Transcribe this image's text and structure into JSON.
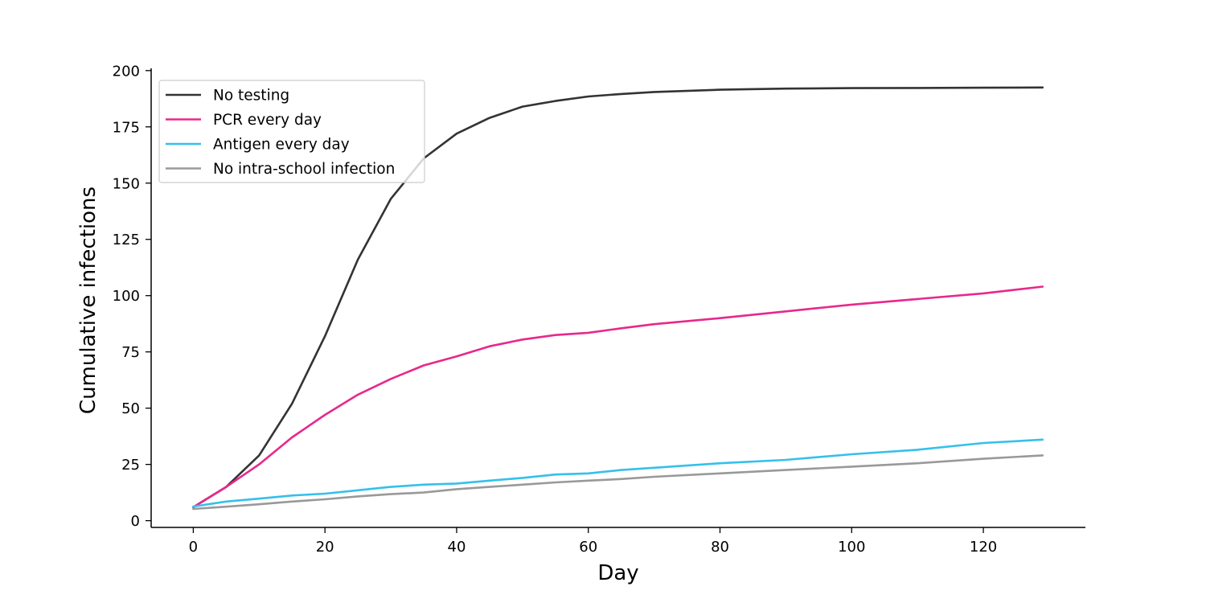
{
  "chart_data": {
    "type": "line",
    "title": "",
    "xlabel": "Day",
    "ylabel": "Cumulative infections",
    "xlim": [
      -6.4,
      135.5
    ],
    "ylim": [
      -3,
      201
    ],
    "xticks": [
      0,
      20,
      40,
      60,
      80,
      100,
      120
    ],
    "yticks": [
      0,
      25,
      50,
      75,
      100,
      125,
      150,
      175,
      200
    ],
    "grid": false,
    "legend": "top-left",
    "x": [
      0,
      5,
      10,
      15,
      20,
      25,
      30,
      35,
      40,
      45,
      50,
      55,
      60,
      65,
      70,
      80,
      90,
      100,
      110,
      120,
      129
    ],
    "series": [
      {
        "name": "No testing",
        "color": "#333333",
        "values": [
          6,
          15,
          29,
          52,
          82,
          116,
          143,
          161,
          172,
          179,
          184,
          186.5,
          188.5,
          189.6,
          190.5,
          191.5,
          192,
          192.2,
          192.3,
          192.4,
          192.5
        ]
      },
      {
        "name": "PCR every day",
        "color": "#e8288c",
        "values": [
          6,
          15,
          25,
          37,
          47,
          56,
          63,
          69,
          73,
          77.5,
          80.5,
          82.5,
          83.5,
          85.5,
          87.3,
          90,
          93,
          96,
          98.5,
          101,
          104
        ]
      },
      {
        "name": "Antigen every day",
        "color": "#35c0ea",
        "values": [
          6.3,
          8.5,
          9.8,
          11.2,
          12,
          13.5,
          15,
          16,
          16.5,
          17.8,
          19,
          20.5,
          21,
          22.5,
          23.5,
          25.5,
          27,
          29.5,
          31.5,
          34.5,
          36
        ]
      },
      {
        "name": "No intra-school infection",
        "color": "#999999",
        "values": [
          5.2,
          6.2,
          7.3,
          8.5,
          9.5,
          10.8,
          11.8,
          12.5,
          14,
          15,
          16,
          17,
          17.8,
          18.5,
          19.5,
          21,
          22.5,
          24,
          25.5,
          27.5,
          29
        ]
      }
    ]
  }
}
